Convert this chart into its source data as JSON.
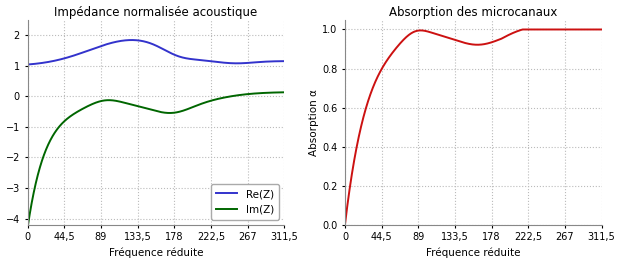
{
  "title_left": "Impédance normalisée acoustique",
  "title_right": "Absorption des microcanaux",
  "xlabel": "Fréquence réduite",
  "ylabel_right": "Absorption α",
  "xticks": [
    0,
    44.5,
    89,
    133.5,
    178,
    222.5,
    267,
    311.5
  ],
  "xtick_labels": [
    "0",
    "44,5",
    "89",
    "133,5",
    "178",
    "222,5",
    "267",
    "311,5"
  ],
  "ylim_left": [
    -4.2,
    2.5
  ],
  "yticks_left": [
    -4,
    -3,
    -2,
    -1,
    0,
    1,
    2
  ],
  "ylim_right": [
    0,
    1.05
  ],
  "yticks_right": [
    0,
    0.2,
    0.4,
    0.6,
    0.8,
    1
  ],
  "color_re": "#3333CC",
  "color_im": "#006600",
  "color_abs": "#CC1111",
  "legend_re": "Re(Z)",
  "legend_im": "Im(Z)",
  "background_color": "#ffffff",
  "grid_color": "#bbbbbb",
  "title_fontsize": 8.5,
  "label_fontsize": 7.5,
  "tick_fontsize": 7,
  "legend_fontsize": 7.5,
  "linewidth": 1.4
}
